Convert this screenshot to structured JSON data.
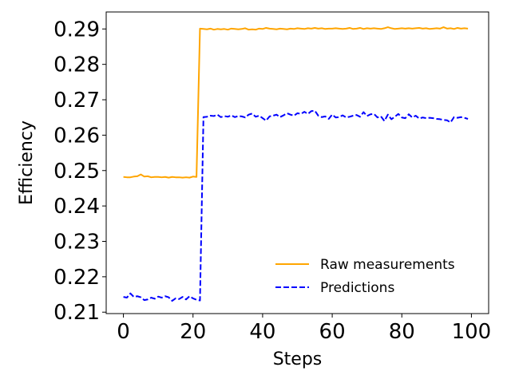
{
  "chart_data": {
    "type": "line",
    "xlabel": "Steps",
    "ylabel": "Efficiency",
    "xlim": [
      -4.95,
      104.95
    ],
    "ylim": [
      0.2096,
      0.2948
    ],
    "xticks": [
      0,
      20,
      40,
      60,
      80,
      100
    ],
    "xtick_labels": [
      "0",
      "20",
      "40",
      "60",
      "80",
      "100"
    ],
    "yticks": [
      0.21,
      0.22,
      0.23,
      0.24,
      0.25,
      0.26,
      0.27,
      0.28,
      0.29
    ],
    "ytick_labels": [
      "0.21",
      "0.22",
      "0.23",
      "0.24",
      "0.25",
      "0.26",
      "0.27",
      "0.28",
      "0.29"
    ],
    "grid": false,
    "legend_position": "lower-right",
    "series": [
      {
        "name": "Raw measurements",
        "color": "#FFA500",
        "style": "solid",
        "x": [
          0,
          1,
          2,
          3,
          4,
          5,
          6,
          7,
          8,
          9,
          10,
          11,
          12,
          13,
          14,
          15,
          16,
          17,
          18,
          19,
          20,
          21,
          22,
          23,
          24,
          25,
          26,
          27,
          28,
          29,
          30,
          31,
          32,
          33,
          34,
          35,
          36,
          37,
          38,
          39,
          40,
          41,
          42,
          43,
          44,
          45,
          46,
          47,
          48,
          49,
          50,
          51,
          52,
          53,
          54,
          55,
          56,
          57,
          58,
          59,
          60,
          61,
          62,
          63,
          64,
          65,
          66,
          67,
          68,
          69,
          70,
          71,
          72,
          73,
          74,
          75,
          76,
          77,
          78,
          79,
          80,
          81,
          82,
          83,
          84,
          85,
          86,
          87,
          88,
          89,
          90,
          91,
          92,
          93,
          94,
          95,
          96,
          97,
          98,
          99
        ],
        "values": [
          0.2482,
          0.2481,
          0.2481,
          0.2483,
          0.2484,
          0.2489,
          0.2483,
          0.2484,
          0.2481,
          0.2482,
          0.2482,
          0.2481,
          0.2482,
          0.248,
          0.2482,
          0.2481,
          0.2481,
          0.248,
          0.2481,
          0.248,
          0.2483,
          0.2482,
          0.2901,
          0.29,
          0.2899,
          0.2901,
          0.2898,
          0.29,
          0.2899,
          0.29,
          0.2898,
          0.2901,
          0.29,
          0.2899,
          0.29,
          0.2902,
          0.2898,
          0.2899,
          0.2898,
          0.2901,
          0.29,
          0.2903,
          0.2901,
          0.29,
          0.2899,
          0.2901,
          0.29,
          0.2899,
          0.2901,
          0.29,
          0.2902,
          0.2901,
          0.29,
          0.2902,
          0.2901,
          0.2903,
          0.2901,
          0.2902,
          0.29,
          0.2901,
          0.2901,
          0.2902,
          0.2901,
          0.29,
          0.2901,
          0.2903,
          0.29,
          0.2901,
          0.2903,
          0.29,
          0.2902,
          0.2901,
          0.2902,
          0.2901,
          0.29,
          0.2902,
          0.2905,
          0.2902,
          0.29,
          0.2901,
          0.2902,
          0.2901,
          0.2902,
          0.2901,
          0.2902,
          0.2903,
          0.2901,
          0.2902,
          0.29,
          0.2901,
          0.2902,
          0.2901,
          0.2905,
          0.2901,
          0.2902,
          0.29,
          0.2903,
          0.2901,
          0.2902,
          0.2901
        ]
      },
      {
        "name": "Predictions",
        "color": "#0000FF",
        "style": "dashed",
        "x": [
          0,
          1,
          2,
          3,
          4,
          5,
          6,
          7,
          8,
          9,
          10,
          11,
          12,
          13,
          14,
          15,
          16,
          17,
          18,
          19,
          20,
          21,
          22,
          23,
          24,
          25,
          26,
          27,
          28,
          29,
          30,
          31,
          32,
          33,
          34,
          35,
          36,
          37,
          38,
          39,
          40,
          41,
          42,
          43,
          44,
          45,
          46,
          47,
          48,
          49,
          50,
          51,
          52,
          53,
          54,
          55,
          56,
          57,
          58,
          59,
          60,
          61,
          62,
          63,
          64,
          65,
          66,
          67,
          68,
          69,
          70,
          71,
          72,
          73,
          74,
          75,
          76,
          77,
          78,
          79,
          80,
          81,
          82,
          83,
          84,
          85,
          86,
          87,
          88,
          89,
          90,
          91,
          92,
          93,
          94,
          95,
          96,
          97,
          98,
          99
        ],
        "values": [
          0.2143,
          0.2141,
          0.2153,
          0.2143,
          0.2145,
          0.2142,
          0.2134,
          0.2136,
          0.2141,
          0.2138,
          0.2144,
          0.2141,
          0.2145,
          0.2142,
          0.2132,
          0.2139,
          0.2137,
          0.2143,
          0.2136,
          0.2145,
          0.2139,
          0.2135,
          0.2133,
          0.2651,
          0.2652,
          0.2655,
          0.2654,
          0.2658,
          0.2651,
          0.2654,
          0.2652,
          0.2656,
          0.2651,
          0.2654,
          0.2653,
          0.265,
          0.2658,
          0.2661,
          0.2652,
          0.2655,
          0.2648,
          0.2641,
          0.2653,
          0.2655,
          0.2658,
          0.2651,
          0.2656,
          0.2662,
          0.2658,
          0.2655,
          0.2662,
          0.266,
          0.2666,
          0.266,
          0.2668,
          0.2669,
          0.2655,
          0.2651,
          0.2653,
          0.2646,
          0.2658,
          0.265,
          0.2651,
          0.2656,
          0.265,
          0.2652,
          0.2655,
          0.2657,
          0.2652,
          0.2665,
          0.2654,
          0.2659,
          0.266,
          0.265,
          0.2653,
          0.264,
          0.2658,
          0.2645,
          0.2652,
          0.266,
          0.265,
          0.2648,
          0.2659,
          0.265,
          0.2655,
          0.2647,
          0.265,
          0.2648,
          0.2649,
          0.2648,
          0.2646,
          0.2645,
          0.2643,
          0.2642,
          0.2636,
          0.2651,
          0.2649,
          0.2651,
          0.2649,
          0.2646
        ]
      }
    ]
  }
}
